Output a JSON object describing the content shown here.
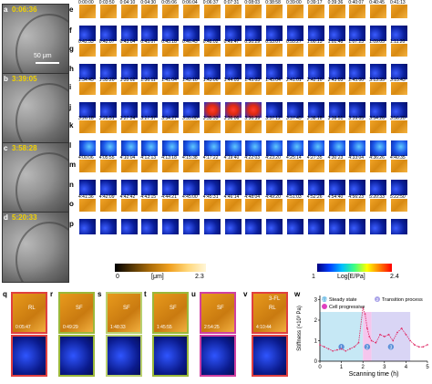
{
  "micrographs": [
    {
      "tag": "a",
      "time": "0:06:36",
      "scale": "50 μm"
    },
    {
      "tag": "b",
      "time": "3:39:05"
    },
    {
      "tag": "c",
      "time": "3:58:28"
    },
    {
      "tag": "d",
      "time": "5:20:33"
    }
  ],
  "grid_rows": [
    {
      "label": "e",
      "kind": "topo"
    },
    {
      "label": "f",
      "kind": "stiff"
    },
    {
      "label": "g",
      "kind": "topo"
    },
    {
      "label": "h",
      "kind": "stiff"
    },
    {
      "label": "i",
      "kind": "topo"
    },
    {
      "label": "j",
      "kind": "stiff_hot"
    },
    {
      "label": "k",
      "kind": "topo"
    },
    {
      "label": "l",
      "kind": "stiff_mid"
    },
    {
      "label": "m",
      "kind": "topo"
    },
    {
      "label": "n",
      "kind": "stiff"
    },
    {
      "label": "o",
      "kind": "topo"
    },
    {
      "label": "p",
      "kind": "stiff"
    }
  ],
  "timestamps": {
    "e": [
      "0:00:00",
      "0:03:50",
      "0:04:10",
      "0:04:30",
      "0:05:06",
      "0:06:04",
      "0:06:37",
      "0:07:31",
      "0:08:03",
      "0:38:58",
      "0:39:00",
      "0:39:17",
      "0:39:36",
      "0:40:07",
      "0:40:45",
      "0:41:13"
    ],
    "g": [
      "0:42:53",
      "0:42:07",
      "0:43:04",
      "0:45:07",
      "0:45:18",
      "0:46:43",
      "0:48:02",
      "0:49:47",
      "0:50:29",
      "0:53:07",
      "0:55:27",
      "1:00:13",
      "1:01:48",
      "1:07:23",
      "1:09:05",
      "1:11:20"
    ],
    "i": [
      "1:34:45",
      "1:35:20",
      "1:35:02",
      "1:36:11",
      "1:41:04",
      "1:42:10",
      "1:43:06",
      "1:44:05",
      "1:45:03",
      "1:45:04",
      "2:41:01",
      "2:42:10",
      "2:43:03",
      "2:45:00",
      "3:13:35",
      "3:15:43"
    ],
    "k": [
      "3:26:18",
      "3:26:51",
      "3:27:24",
      "3:27:57",
      "3:34:27",
      "3:35:00",
      "3:35:33",
      "3:36:06",
      "3:36:39",
      "3:37:12",
      "3:37:45",
      "3:38:18",
      "3:38:51",
      "3:39:05",
      "3:54:26",
      "3:56:20"
    ],
    "m": [
      "4:00:06",
      "4:05:55",
      "4:10:04",
      "4:12:13",
      "4:13:18",
      "4:15:38",
      "4:17:22",
      "4:19:40",
      "4:22:03",
      "4:23:20",
      "4:25:14",
      "4:27:35",
      "4:30:23",
      "4:33:04",
      "4:36:26",
      "4:40:35"
    ],
    "o": [
      "4:41:36",
      "4:42:09",
      "4:42:42",
      "4:43:15",
      "4:44:21",
      "4:45:00",
      "4:45:31",
      "4:46:14",
      "4:48:04",
      "4:49:20",
      "4:51:03",
      "4:52:26",
      "4:54:40",
      "4:56:23",
      "5:20:33",
      "5:22:50"
    ]
  },
  "colorbar_height": {
    "min": "0",
    "max": "2.3",
    "unit": "[μm]"
  },
  "colorbar_stiffness": {
    "min": "1",
    "max": "2.4",
    "unit": "Log[E/Pa]"
  },
  "bottom_panels": [
    {
      "tag": "q",
      "time": "0:05:47",
      "note": "RL",
      "border": "#e04040"
    },
    {
      "tag": "r",
      "time": "0:49:29",
      "note": "SF",
      "border": "#9bb83a"
    },
    {
      "tag": "s",
      "time": "1:48:33",
      "note": "SF",
      "border": "#b9d070"
    },
    {
      "tag": "t",
      "time": "1:45:55",
      "note": "SF",
      "border": "#9bb83a"
    },
    {
      "tag": "u",
      "time": "2:54:25",
      "note": "SF",
      "border": "#d040a0"
    },
    {
      "tag": "v",
      "time": "4:10:44",
      "note": "RL",
      "note2": "3-FL",
      "border": "#e04040"
    }
  ],
  "chart_data": {
    "type": "line",
    "panel": "w",
    "xlabel": "Scanning time (h)",
    "ylabel": "Stiffness (×10³ Pa)",
    "xlim": [
      0,
      5
    ],
    "ylim": [
      0,
      3.2
    ],
    "xticks": [
      "0",
      "1",
      "2",
      "3",
      "4",
      "5"
    ],
    "yticks": [
      "0",
      "1",
      "2",
      "3"
    ],
    "legend": [
      {
        "label": "Steady state",
        "badge": "1 4",
        "color": "#7fc4e8"
      },
      {
        "label": "Transition process",
        "badge": "2",
        "color": "#a9a3e8"
      },
      {
        "label": "Cell progressive",
        "badge": "",
        "color": "#e040c0"
      }
    ],
    "x": [
      0,
      0.2,
      0.4,
      0.6,
      0.8,
      1.0,
      1.2,
      1.4,
      1.6,
      1.8,
      2.0,
      2.1,
      2.2,
      2.3,
      2.4,
      2.6,
      2.8,
      3.0,
      3.2,
      3.4,
      3.6,
      3.8,
      4.0,
      4.2,
      4.4,
      4.6,
      4.8,
      5.0
    ],
    "y": [
      0.8,
      0.7,
      0.6,
      0.5,
      0.55,
      0.6,
      0.5,
      0.6,
      0.7,
      0.9,
      2.6,
      2.3,
      1.6,
      1.2,
      1.0,
      0.9,
      1.3,
      1.2,
      1.3,
      1.0,
      1.4,
      1.6,
      1.3,
      1.0,
      0.8,
      0.7,
      0.7,
      0.8
    ],
    "regions": [
      {
        "label": "1",
        "from": 0,
        "to": 2.0,
        "color": "#b8e2f2"
      },
      {
        "label": "2",
        "from": 2.0,
        "to": 2.4,
        "color": "#f3b8e8"
      },
      {
        "label": "3",
        "from": 2.4,
        "to": 4.2,
        "color": "#cfcaf3"
      }
    ]
  }
}
